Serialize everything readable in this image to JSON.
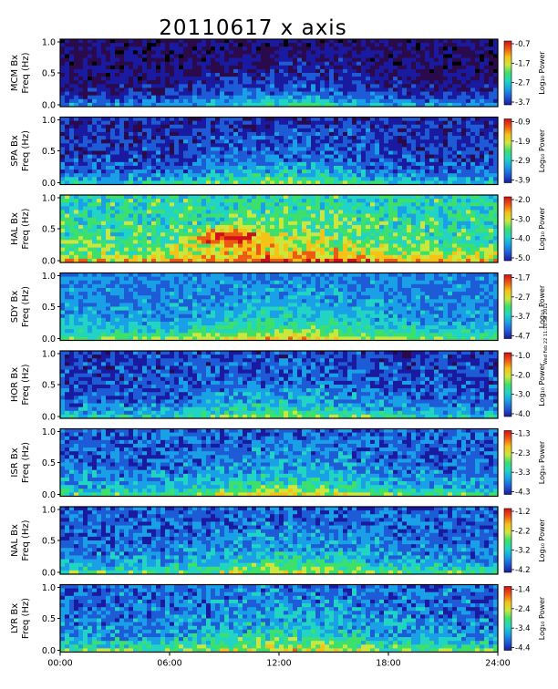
{
  "title": "20110617  x axis",
  "side_note": "Wed Feb 22 11:10:58 2012",
  "chart_data": {
    "type": "heatmap",
    "title": "20110617  x axis",
    "x_tick_labels": [
      "00:00",
      "06:00",
      "12:00",
      "18:00",
      "24:00"
    ],
    "x_range_hours": [
      0,
      24
    ],
    "y_tick_labels": [
      "0.0",
      "0.5",
      "1.0"
    ],
    "y_range_hz": [
      0,
      1.0
    ],
    "colorbar_label": "Log₁₀ Power",
    "grid": false,
    "panels": [
      {
        "station": "MCM Bx",
        "ylabel": "Freq (Hz)",
        "colorbar_ticks": [
          "-0.7",
          "-1.7",
          "-2.7",
          "-3.7"
        ],
        "clim": [
          -3.7,
          -0.7
        ]
      },
      {
        "station": "SPA Bx",
        "ylabel": "Freq (Hz)",
        "colorbar_ticks": [
          "-0.9",
          "-1.9",
          "-2.9",
          "-3.9"
        ],
        "clim": [
          -3.9,
          -0.9
        ]
      },
      {
        "station": "HAL Bx",
        "ylabel": "Freq (Hz)",
        "colorbar_ticks": [
          "-2.0",
          "-3.0",
          "-4.0",
          "-5.0"
        ],
        "clim": [
          -5.0,
          -2.0
        ]
      },
      {
        "station": "SDY Bx",
        "ylabel": "Freq (Hz)",
        "colorbar_ticks": [
          "-1.7",
          "-2.7",
          "-3.7",
          "-4.7"
        ],
        "clim": [
          -4.7,
          -1.7
        ]
      },
      {
        "station": "HOR Bx",
        "ylabel": "Freq (Hz)",
        "colorbar_ticks": [
          "-1.0",
          "-2.0",
          "-3.0",
          "-4.0"
        ],
        "clim": [
          -4.0,
          -1.0
        ]
      },
      {
        "station": "ISR Bx",
        "ylabel": "Freq (Hz)",
        "colorbar_ticks": [
          "-1.3",
          "-2.3",
          "-3.3",
          "-4.3"
        ],
        "clim": [
          -4.3,
          -1.3
        ]
      },
      {
        "station": "NAL Bx",
        "ylabel": "Freq (Hz)",
        "colorbar_ticks": [
          "-1.2",
          "-2.2",
          "-3.2",
          "-4.2"
        ],
        "clim": [
          -4.2,
          -1.2
        ]
      },
      {
        "station": "LYR Bx",
        "ylabel": "Freq (Hz)",
        "colorbar_ticks": [
          "-1.4",
          "-2.4",
          "-3.4",
          "-4.4"
        ],
        "clim": [
          -4.4,
          -1.4
        ]
      }
    ],
    "colors": {
      "scale": [
        "#000000",
        "#2a0a4a",
        "#1a1aa0",
        "#1e5bd6",
        "#19a0e6",
        "#21d4c4",
        "#3ce06a",
        "#cde63c",
        "#f5c318",
        "#ef5a12",
        "#d0101a"
      ],
      "frame": "#000000"
    }
  }
}
